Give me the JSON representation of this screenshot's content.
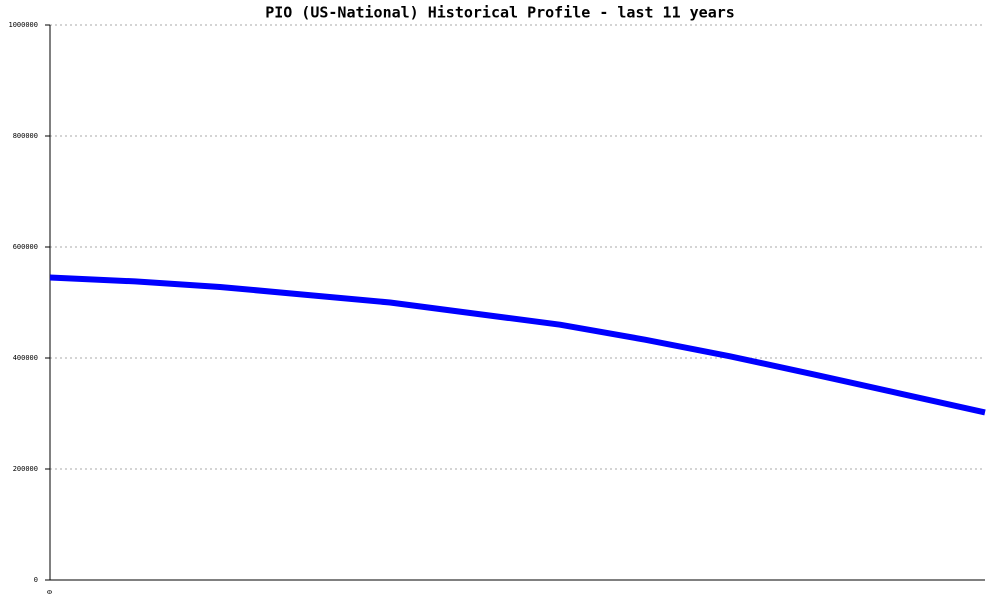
{
  "chart_data": {
    "type": "line",
    "title": "PIO (US-National) Historical Profile - last 11 years",
    "categories": [
      "0",
      null,
      null,
      null,
      null,
      null,
      null,
      null,
      null,
      null,
      null,
      null
    ],
    "series": [
      {
        "name": "PIO",
        "color": "#0000ff",
        "values": [
          545000,
          538000,
          528000,
          514000,
          500000,
          480000,
          460000,
          433000,
          403000,
          370000,
          336000,
          302000
        ]
      }
    ],
    "ylim": [
      0,
      1000000
    ],
    "yticks": [
      0,
      200000,
      400000,
      600000,
      800000,
      1000000
    ],
    "grid": true
  }
}
